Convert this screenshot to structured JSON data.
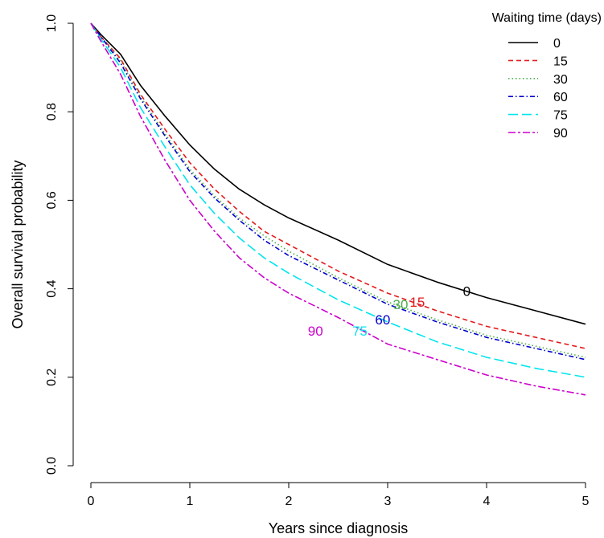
{
  "chart_data": {
    "type": "line",
    "xlabel": "Years since diagnosis",
    "ylabel": "Overall survival probability",
    "xlim": [
      0,
      5
    ],
    "ylim": [
      0,
      1
    ],
    "x_ticks": [
      "0",
      "1",
      "2",
      "3",
      "4",
      "5"
    ],
    "y_ticks": [
      "0.0",
      "0.2",
      "0.4",
      "0.6",
      "0.8",
      "1.0"
    ],
    "grid": false,
    "legend": {
      "title": "Waiting time (days)",
      "position": "top-right"
    },
    "x": [
      0,
      0.1,
      0.3,
      0.5,
      0.75,
      1,
      1.25,
      1.5,
      1.75,
      2,
      2.5,
      3,
      3.5,
      4,
      4.5,
      5
    ],
    "series": [
      {
        "name": "0",
        "color": "#000000",
        "dash": "solid",
        "values": [
          1.0,
          0.975,
          0.93,
          0.86,
          0.79,
          0.725,
          0.67,
          0.625,
          0.59,
          0.56,
          0.51,
          0.455,
          0.415,
          0.38,
          0.35,
          0.32
        ]
      },
      {
        "name": "15",
        "color": "#e41a1c",
        "dash": "dashed",
        "values": [
          1.0,
          0.97,
          0.92,
          0.84,
          0.76,
          0.685,
          0.625,
          0.575,
          0.53,
          0.5,
          0.44,
          0.39,
          0.35,
          0.315,
          0.29,
          0.265
        ]
      },
      {
        "name": "30",
        "color": "#4daf4a",
        "dash": "dotted",
        "values": [
          1.0,
          0.97,
          0.915,
          0.835,
          0.75,
          0.67,
          0.61,
          0.56,
          0.52,
          0.485,
          0.425,
          0.37,
          0.33,
          0.295,
          0.27,
          0.245
        ]
      },
      {
        "name": "60",
        "color": "#0000cc",
        "dash": "dashdot",
        "values": [
          1.0,
          0.97,
          0.91,
          0.83,
          0.745,
          0.665,
          0.605,
          0.555,
          0.51,
          0.475,
          0.42,
          0.365,
          0.325,
          0.29,
          0.265,
          0.24
        ]
      },
      {
        "name": "75",
        "color": "#00e5ee",
        "dash": "longdash",
        "values": [
          1.0,
          0.965,
          0.9,
          0.81,
          0.72,
          0.635,
          0.57,
          0.515,
          0.47,
          0.435,
          0.375,
          0.325,
          0.28,
          0.245,
          0.22,
          0.2
        ]
      },
      {
        "name": "90",
        "color": "#cc00cc",
        "dash": "twodash",
        "values": [
          1.0,
          0.96,
          0.885,
          0.79,
          0.69,
          0.6,
          0.53,
          0.47,
          0.425,
          0.39,
          0.335,
          0.275,
          0.24,
          0.205,
          0.18,
          0.16
        ]
      }
    ],
    "annotations": [
      {
        "text": "0",
        "x": 3.8,
        "y": 0.395,
        "color": "#000000"
      },
      {
        "text": "15",
        "x": 3.3,
        "y": 0.37,
        "color": "#e41a1c"
      },
      {
        "text": "30",
        "x": 3.13,
        "y": 0.365,
        "color": "#4daf4a"
      },
      {
        "text": "60",
        "x": 2.95,
        "y": 0.33,
        "color": "#0000cc"
      },
      {
        "text": "75",
        "x": 2.72,
        "y": 0.305,
        "color": "#00e5ee"
      },
      {
        "text": "90",
        "x": 2.27,
        "y": 0.305,
        "color": "#cc00cc"
      }
    ]
  }
}
